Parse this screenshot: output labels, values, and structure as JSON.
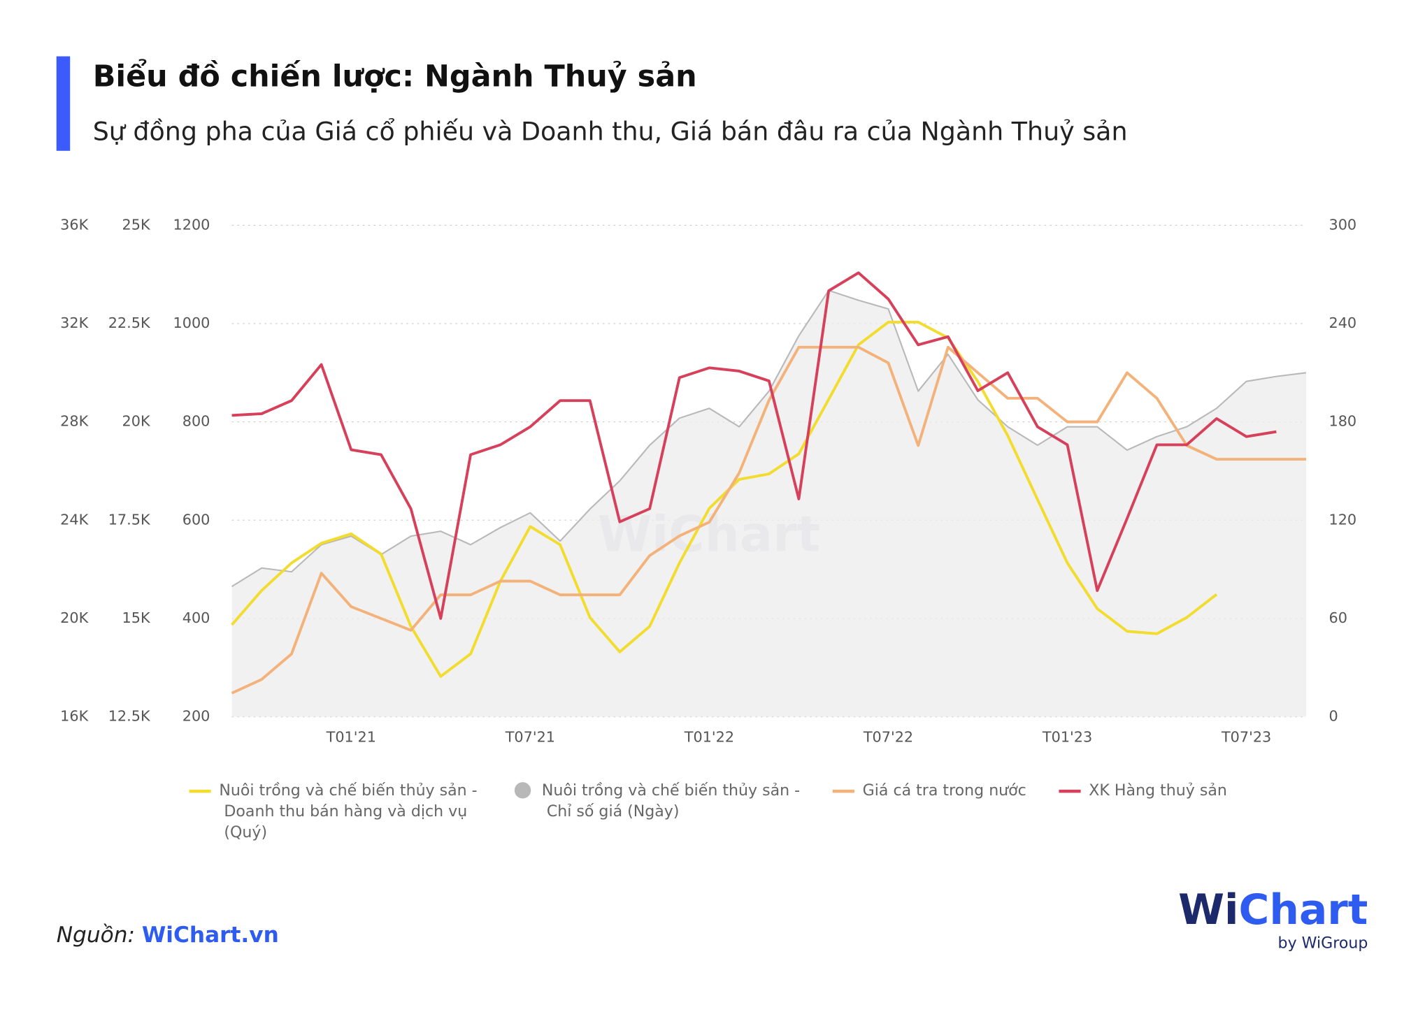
{
  "chart_data": {
    "type": "line",
    "title": "Biểu đồ chiến lược: Ngành Thuỷ sản",
    "subtitle": "Sự đồng pha của Giá cổ phiếu và Doanh thu, Giá bán đâu ra của Ngành Thuỷ sản",
    "x": [
      "2020-09",
      "2020-10",
      "2020-11",
      "2020-12",
      "2021-01",
      "2021-02",
      "2021-03",
      "2021-04",
      "2021-05",
      "2021-06",
      "2021-07",
      "2021-08",
      "2021-09",
      "2021-10",
      "2021-11",
      "2021-12",
      "2022-01",
      "2022-02",
      "2022-03",
      "2022-04",
      "2022-05",
      "2022-06",
      "2022-07",
      "2022-08",
      "2022-09",
      "2022-10",
      "2022-11",
      "2022-12",
      "2023-01",
      "2023-02",
      "2023-03",
      "2023-04",
      "2023-05",
      "2023-06",
      "2023-07",
      "2023-08",
      "2023-09"
    ],
    "xlim": [
      "2020-09",
      "2023-09"
    ],
    "xticks": [
      {
        "value": "2021-01",
        "label": "T01'21"
      },
      {
        "value": "2021-07",
        "label": "T07'21"
      },
      {
        "value": "2022-01",
        "label": "T01'22"
      },
      {
        "value": "2022-07",
        "label": "T07'22"
      },
      {
        "value": "2023-01",
        "label": "T01'23"
      },
      {
        "value": "2023-07",
        "label": "T07'23"
      }
    ],
    "ylim": [
      200,
      1200
    ],
    "yticks": [
      200,
      400,
      600,
      800,
      1000,
      1200
    ],
    "y2lim": [
      0,
      300
    ],
    "y2ticks": [
      0,
      60,
      120,
      180,
      240,
      300
    ],
    "y3lim": [
      16000,
      36000
    ],
    "y3ticks": [
      {
        "value": 16000,
        "label": "16K"
      },
      {
        "value": 20000,
        "label": "20K"
      },
      {
        "value": 24000,
        "label": "24K"
      },
      {
        "value": 28000,
        "label": "28K"
      },
      {
        "value": 32000,
        "label": "32K"
      },
      {
        "value": 36000,
        "label": "36K"
      }
    ],
    "y4lim": [
      12500,
      25000
    ],
    "y4ticks": [
      {
        "value": 12500,
        "label": "12.5K"
      },
      {
        "value": 15000,
        "label": "15K"
      },
      {
        "value": 17500,
        "label": "17.5K"
      },
      {
        "value": 20000,
        "label": "20K"
      },
      {
        "value": 22500,
        "label": "22.5K"
      },
      {
        "value": 25000,
        "label": "25K"
      }
    ],
    "grid": true,
    "series": [
      {
        "name": "Nuôi trồng và chế biến thủy sản - Doanh thu bán hàng và dịch vụ (Quý)",
        "color": "#f2dc2e",
        "axis": "y",
        "values": [
          387,
          457,
          513,
          553,
          572,
          531,
          384,
          282,
          328,
          476,
          587,
          550,
          402,
          332,
          384,
          513,
          624,
          683,
          694,
          735,
          846,
          957,
          1003,
          1003,
          971,
          882,
          772,
          642,
          513,
          420,
          374,
          369,
          402,
          449,
          null,
          null,
          null
        ]
      },
      {
        "name": "Nuôi trồng và chế biến thủy sản - Chỉ số giá (Ngày)",
        "color": "#b8b8b8",
        "axis": "y3",
        "area": true,
        "values": [
          21300,
          22050,
          21900,
          23000,
          23350,
          22600,
          23350,
          23550,
          23000,
          23700,
          24300,
          23150,
          24450,
          25600,
          27050,
          28150,
          28550,
          27800,
          29250,
          31500,
          33350,
          32950,
          32600,
          29250,
          30750,
          28900,
          27800,
          27050,
          27800,
          27800,
          26850,
          27400,
          27800,
          28550,
          29650,
          29850,
          30000
        ]
      },
      {
        "name": "Giá cá tra trong nước",
        "color": "#f4b27b",
        "axis": "y4",
        "values": [
          13100,
          13450,
          14100,
          16150,
          15300,
          15000,
          14700,
          15600,
          15600,
          15950,
          15950,
          15600,
          15600,
          15600,
          16600,
          17100,
          17450,
          18700,
          20550,
          21900,
          21900,
          21900,
          21500,
          19400,
          21900,
          21250,
          20600,
          20600,
          20000,
          20000,
          21250,
          20600,
          19400,
          19050,
          19050,
          19050,
          19050
        ]
      },
      {
        "name": "XK Hàng thuỷ sản",
        "color": "#d6405a",
        "axis": "y2",
        "values": [
          184,
          185,
          193,
          215,
          163,
          160,
          127,
          60,
          160,
          166,
          177,
          193,
          193,
          119,
          127,
          207,
          213,
          211,
          205,
          133,
          260,
          271,
          255,
          227,
          232,
          199,
          210,
          177,
          166,
          77,
          121,
          166,
          166,
          182,
          171,
          174,
          null
        ]
      }
    ],
    "watermark": "WiChart",
    "source_label": "Nguồn:",
    "source_link": "WiChart.vn",
    "logo": [
      "Wi",
      "Chart"
    ],
    "logo_sub": "by WiGroup"
  }
}
